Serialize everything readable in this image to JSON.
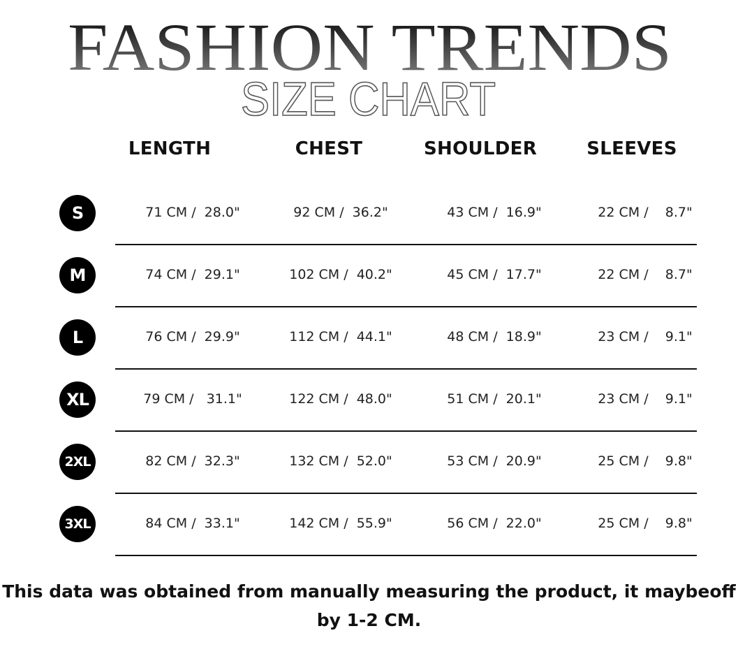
{
  "title": "FASHION TRENDS",
  "subtitle": "SIZE CHART",
  "columns": [
    "LENGTH",
    "CHEST",
    "SHOULDER",
    "SLEEVES"
  ],
  "rows": [
    {
      "size": "S",
      "cells": [
        "71 CM /  28.0\"",
        "92 CM /  36.2\"",
        "43 CM /  16.9\"",
        "22 CM /    8.7\""
      ]
    },
    {
      "size": "M",
      "cells": [
        "74 CM /  29.1\"",
        "102 CM /  40.2\"",
        "45 CM /  17.7\"",
        "22 CM /    8.7\""
      ]
    },
    {
      "size": "L",
      "cells": [
        "76 CM /  29.9\"",
        "112 CM /  44.1\"",
        "48 CM /  18.9\"",
        "23 CM /    9.1\""
      ]
    },
    {
      "size": "XL",
      "cells": [
        "79 CM /   31.1\"",
        "122 CM /  48.0\"",
        "51 CM /  20.1\"",
        "23 CM /    9.1\""
      ]
    },
    {
      "size": "2XL",
      "cells": [
        "82 CM /  32.3\"",
        "132 CM /  52.0\"",
        "53 CM /  20.9\"",
        "25 CM /    9.8\""
      ]
    },
    {
      "size": "3XL",
      "cells": [
        "84 CM /  33.1\"",
        "142 CM /  55.9\"",
        "56 CM /  22.0\"",
        "25 CM /    9.8\""
      ]
    }
  ],
  "footer": {
    "line1": "This data was obtained from manually measuring the product, it maybeoff",
    "line2": "by 1-2 CM."
  }
}
